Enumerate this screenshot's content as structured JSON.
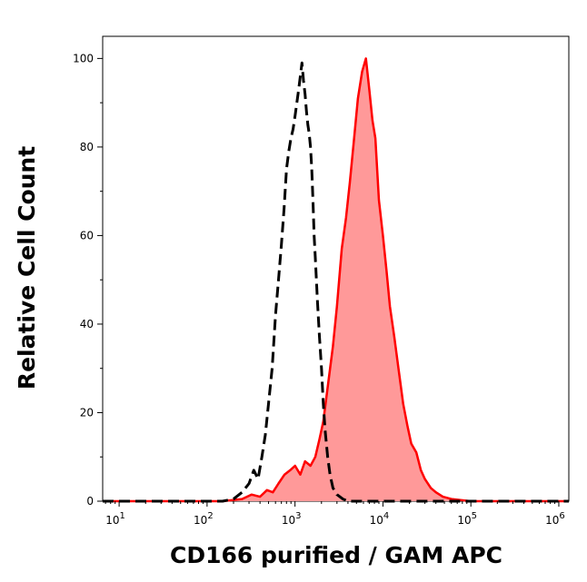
{
  "chart_data": {
    "type": "area",
    "xlabel": "CD166 purified / GAM APC",
    "ylabel": "Relative Cell Count",
    "x_scale": "log",
    "xlim": [
      6.5,
      1300000
    ],
    "ylim": [
      0,
      105
    ],
    "x_ticks": [
      {
        "base": "10",
        "exp": "1",
        "value": 10
      },
      {
        "base": "10",
        "exp": "2",
        "value": 100
      },
      {
        "base": "10",
        "exp": "3",
        "value": 1000
      },
      {
        "base": "10",
        "exp": "4",
        "value": 10000
      },
      {
        "base": "10",
        "exp": "5",
        "value": 100000
      },
      {
        "base": "10",
        "exp": "6",
        "value": 1000000
      }
    ],
    "y_ticks": [
      "0",
      "20",
      "40",
      "60",
      "80",
      "100"
    ],
    "grid": false,
    "legend": "none",
    "series": [
      {
        "style": "filled",
        "line_color": "#ff0000",
        "fill_color": "#ff9999",
        "x": [
          6.5,
          50,
          150,
          250,
          320,
          400,
          480,
          560,
          650,
          760,
          880,
          1000,
          1150,
          1300,
          1500,
          1700,
          1900,
          2100,
          2400,
          2700,
          3000,
          3400,
          3800,
          4200,
          4700,
          5200,
          5800,
          6400,
          7000,
          7600,
          8200,
          9000,
          10000,
          11000,
          12000,
          13500,
          15000,
          17000,
          19000,
          21000,
          24000,
          27000,
          30000,
          35000,
          40000,
          48000,
          60000,
          100000,
          1000000,
          1300000
        ],
        "y": [
          0,
          0,
          0,
          0.5,
          1.5,
          1,
          2.5,
          2,
          4,
          6,
          7,
          8,
          6,
          9,
          8,
          10,
          14,
          18,
          27,
          35,
          44,
          57,
          64,
          72,
          82,
          91,
          97,
          100,
          93,
          86,
          82,
          68,
          60,
          52,
          44,
          37,
          30,
          22,
          17,
          13,
          11,
          7,
          5,
          3,
          2,
          1,
          0.5,
          0,
          0,
          0
        ]
      },
      {
        "style": "dashed",
        "line_color": "#000000",
        "x": [
          6.5,
          150,
          200,
          250,
          300,
          340,
          380,
          420,
          460,
          500,
          550,
          600,
          650,
          700,
          750,
          800,
          850,
          900,
          950,
          1000,
          1050,
          1100,
          1150,
          1200,
          1250,
          1300,
          1350,
          1400,
          1450,
          1500,
          1550,
          1600,
          1650,
          1700,
          1800,
          1900,
          2000,
          2100,
          2200,
          2350,
          2500,
          2700,
          3000,
          3500,
          4000,
          5000,
          7000,
          10000,
          1300000
        ],
        "y": [
          0,
          0,
          0.5,
          2,
          4,
          7,
          5,
          10,
          15,
          22,
          30,
          42,
          50,
          58,
          66,
          75,
          79,
          82,
          84,
          87,
          90,
          93,
          96,
          99,
          95,
          92,
          88,
          85,
          83,
          80,
          75,
          68,
          60,
          55,
          45,
          37,
          30,
          22,
          16,
          10,
          6,
          3,
          1.5,
          0.5,
          0,
          0,
          0,
          0,
          0
        ]
      }
    ]
  }
}
